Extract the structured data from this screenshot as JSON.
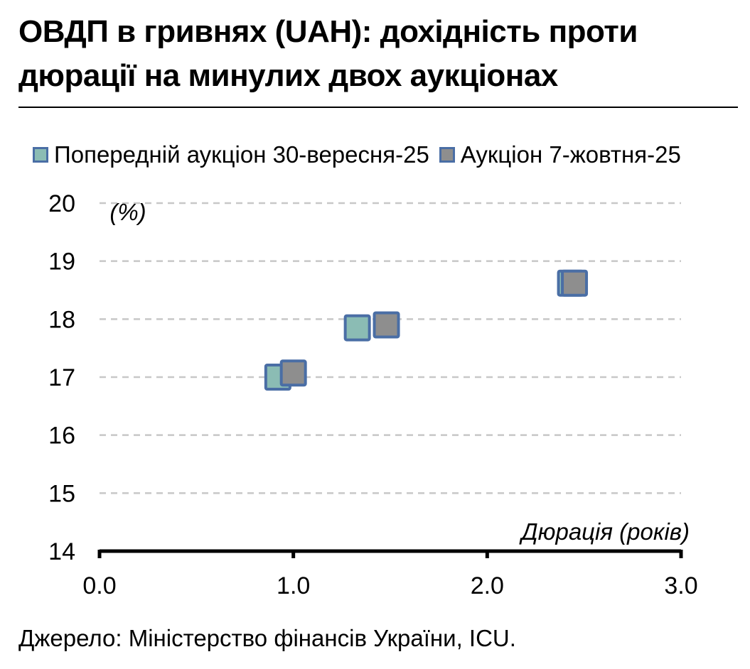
{
  "title_line1": "ОВДП в гривнях (UAH): дохідність проти",
  "title_line2": "дюрації на минулих двох аукціонах",
  "source": "Джерело: Міністерство фінансів України, ICU.",
  "chart_data": {
    "type": "scatter",
    "title": "ОВДП в гривнях (UAH): дохідність проти дюрації на минулих двох аукціонах",
    "xlabel": "Дюрація (років)",
    "ylabel": "(%)",
    "xlim": [
      0,
      3
    ],
    "ylim": [
      14,
      20
    ],
    "x_ticks": [
      "0.0",
      "1.0",
      "2.0",
      "3.0"
    ],
    "y_ticks": [
      "14",
      "15",
      "16",
      "17",
      "18",
      "19",
      "20"
    ],
    "grid": true,
    "legend_position": "top",
    "series": [
      {
        "name": "Попередній аукціон 30-вересня-25",
        "color": "#8bbcb4",
        "edge_color": "#4a6ea5",
        "points": [
          [
            0.92,
            17.0
          ],
          [
            1.33,
            17.85
          ],
          [
            2.43,
            18.62
          ]
        ]
      },
      {
        "name": "Аукціон 7-жовтня-25",
        "color": "#8e8e8e",
        "edge_color": "#4a6ea5",
        "points": [
          [
            1.0,
            17.07
          ],
          [
            1.48,
            17.9
          ],
          [
            2.45,
            18.62
          ]
        ]
      }
    ]
  }
}
